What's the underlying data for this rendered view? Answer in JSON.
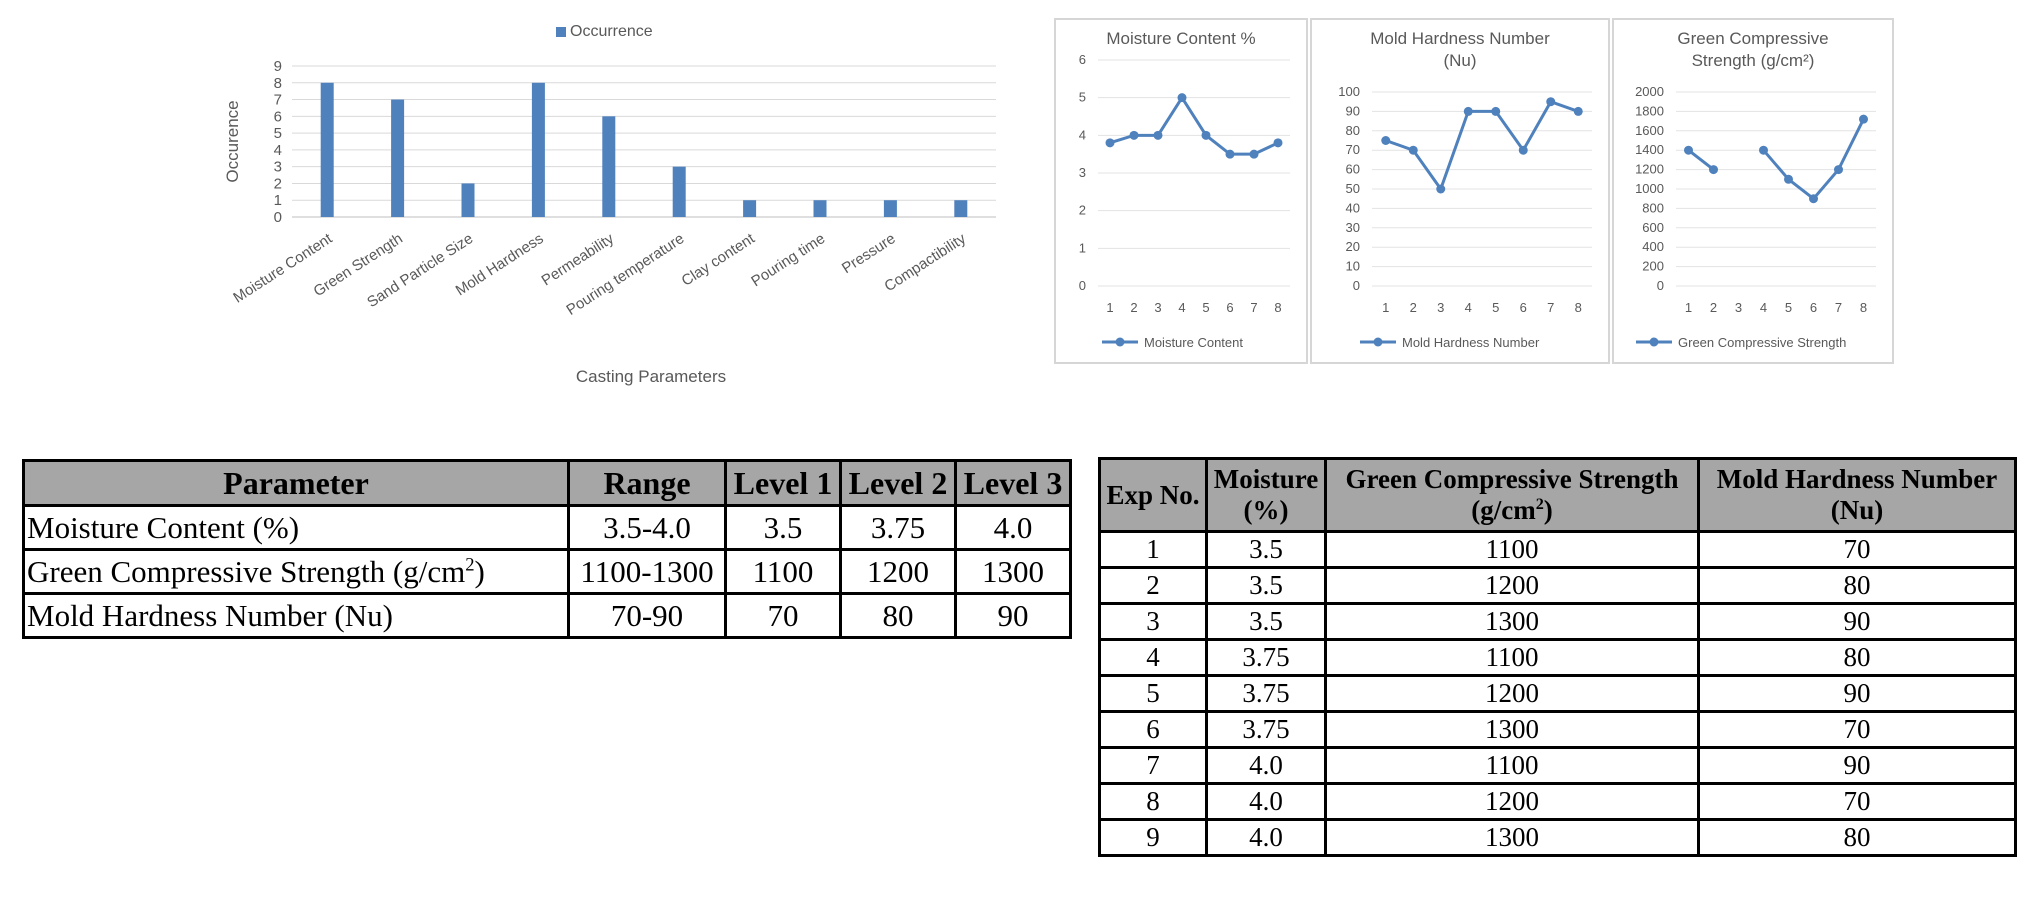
{
  "chart_data": [
    {
      "type": "bar",
      "title": "",
      "xlabel": "Casting Parameters",
      "ylabel": "Occurence",
      "legend": "top-center",
      "ylim": [
        0,
        9
      ],
      "yticks": [
        "0",
        "1",
        "2",
        "3",
        "4",
        "5",
        "6",
        "7",
        "8",
        "9"
      ],
      "categories": [
        "Moisture Content",
        "Green Strength",
        "Sand Particle Size",
        "Mold Hardness",
        "Permeability",
        "Pouring temperature",
        "Clay content",
        "Pouring time",
        "Pressure",
        "Compactibility"
      ],
      "series": [
        {
          "name": "Occurrence",
          "values": [
            8,
            7,
            2,
            8,
            6,
            3,
            1,
            1,
            1,
            1
          ]
        }
      ],
      "color": "#4f81bd"
    },
    {
      "type": "line",
      "title": "Moisture Content %",
      "ylim": [
        0,
        6
      ],
      "yticks": [
        "0",
        "1",
        "2",
        "3",
        "4",
        "5",
        "6"
      ],
      "x": [
        "1",
        "2",
        "3",
        "4",
        "5",
        "6",
        "7",
        "8"
      ],
      "series": [
        {
          "name": "Moisture Content",
          "values": [
            3.8,
            4.0,
            4.0,
            5.0,
            4.0,
            3.5,
            3.5,
            3.8
          ]
        }
      ],
      "legend": "bottom",
      "color": "#4f81bd"
    },
    {
      "type": "line",
      "title": "Mold Hardness Number (Nu)",
      "ylim": [
        0,
        100
      ],
      "yticks": [
        "0",
        "10",
        "20",
        "30",
        "40",
        "50",
        "60",
        "70",
        "80",
        "90",
        "100"
      ],
      "x": [
        "1",
        "2",
        "3",
        "4",
        "5",
        "6",
        "7",
        "8"
      ],
      "series": [
        {
          "name": "Mold Hardness Number",
          "values": [
            75,
            70,
            50,
            90,
            90,
            70,
            95,
            90
          ]
        }
      ],
      "legend": "bottom",
      "color": "#4f81bd"
    },
    {
      "type": "line",
      "title": "Green Compressive Strength (g/cm²)",
      "ylim": [
        0,
        2000
      ],
      "yticks": [
        "0",
        "200",
        "400",
        "600",
        "800",
        "1000",
        "1200",
        "1400",
        "1600",
        "1800",
        "2000"
      ],
      "x": [
        "1",
        "2",
        "3",
        "4",
        "5",
        "6",
        "7",
        "8"
      ],
      "series": [
        {
          "name": "Green Compressive Strength",
          "values": [
            1400,
            1200,
            null,
            1400,
            1100,
            900,
            1200,
            1720
          ]
        }
      ],
      "legend": "bottom",
      "color": "#4f81bd"
    }
  ],
  "param_table": {
    "headers": [
      "Parameter",
      "Range",
      "Level 1",
      "Level 2",
      "Level 3"
    ],
    "rows": [
      [
        "Moisture Content (%)",
        "3.5-4.0",
        "3.5",
        "3.75",
        "4.0"
      ],
      [
        "Green Compressive Strength (g/cm",
        "1100-1300",
        "1100",
        "1200",
        "1300"
      ],
      [
        "Mold Hardness Number (Nu)",
        "70-90",
        "70",
        "80",
        "90"
      ]
    ],
    "row2_sup": "2",
    "row2_suffix": ")"
  },
  "exp_table": {
    "headers": {
      "exp": "Exp No.",
      "moisture": [
        "Moisture",
        "(%)"
      ],
      "gcs": [
        "Green Compressive Strength",
        "(g/cm",
        "2",
        ")"
      ],
      "mhn": [
        "Mold Hardness Number",
        "(Nu)"
      ]
    },
    "rows": [
      [
        "1",
        "3.5",
        "1100",
        "70"
      ],
      [
        "2",
        "3.5",
        "1200",
        "80"
      ],
      [
        "3",
        "3.5",
        "1300",
        "90"
      ],
      [
        "4",
        "3.75",
        "1100",
        "80"
      ],
      [
        "5",
        "3.75",
        "1200",
        "90"
      ],
      [
        "6",
        "3.75",
        "1300",
        "70"
      ],
      [
        "7",
        "4.0",
        "1100",
        "90"
      ],
      [
        "8",
        "4.0",
        "1200",
        "70"
      ],
      [
        "9",
        "4.0",
        "1300",
        "80"
      ]
    ]
  }
}
